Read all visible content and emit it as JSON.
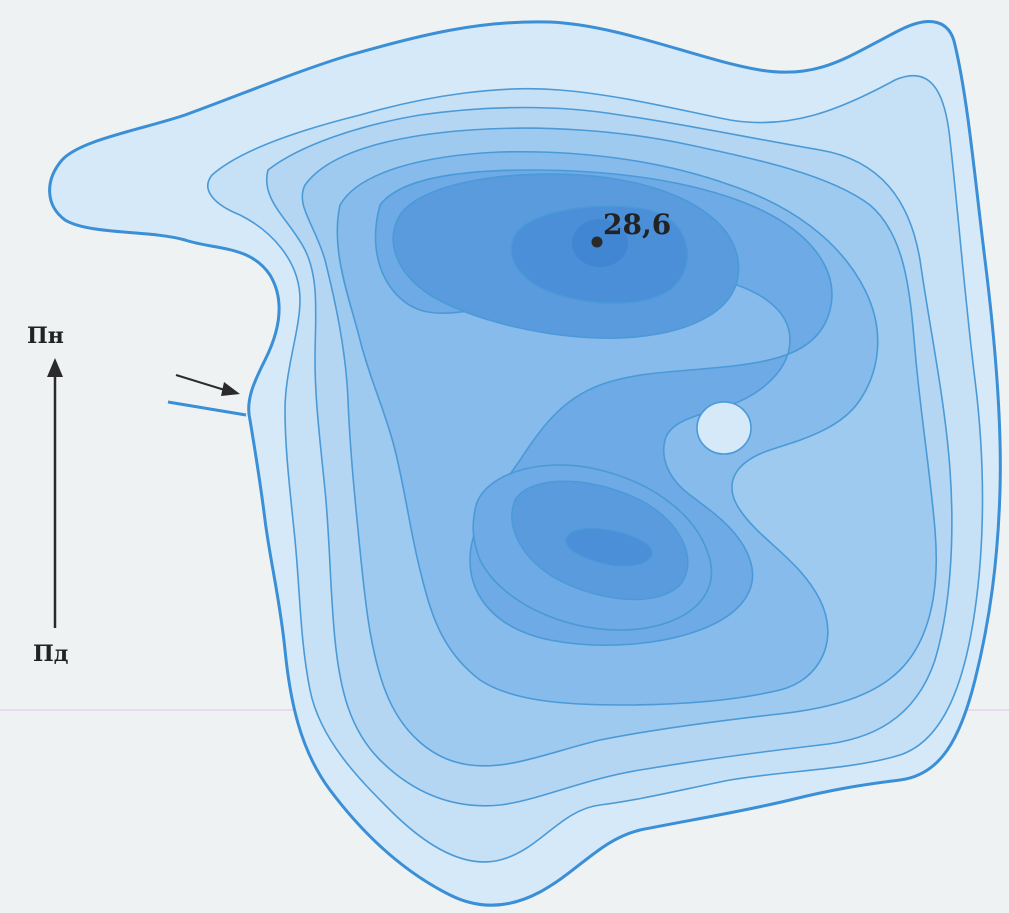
{
  "map": {
    "depth_label": "28,6",
    "north_label": "Пн",
    "south_label": "Пд"
  },
  "colors": {
    "paper": "#eef2f3",
    "shoreline": "#3a8fd6",
    "isoline": "#4a9ad8",
    "level_1": "#d6e9f8",
    "level_2": "#c6e0f6",
    "level_3": "#b4d6f3",
    "level_4": "#9fcaf0",
    "level_5": "#86bbeb",
    "level_6": "#6eaae5",
    "level_7": "#5a9bde",
    "deepest_point": "#2a2a2a"
  }
}
